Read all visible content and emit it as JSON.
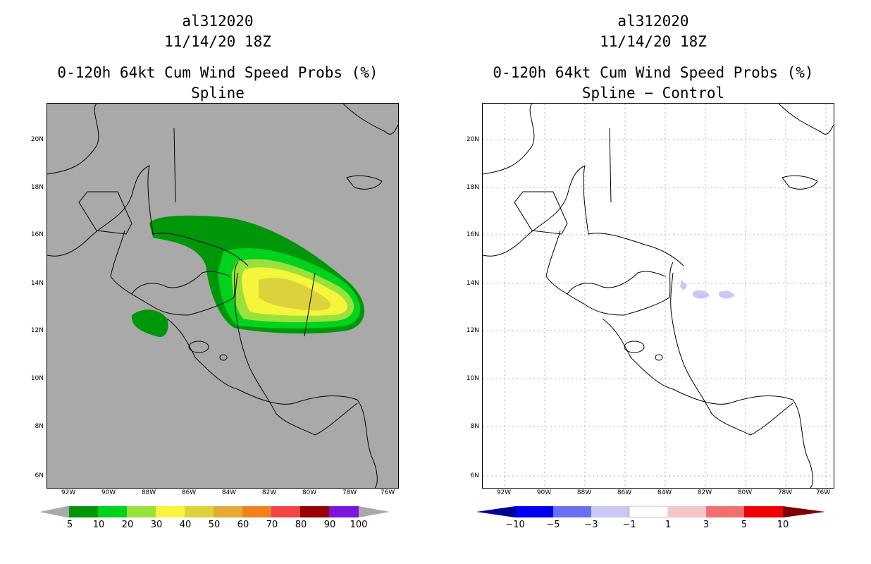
{
  "left": {
    "storm_id": "al312020",
    "datetime": "11/14/20 18Z",
    "product": "0-120h 64kt Cum Wind Speed Probs (%)",
    "subtitle": "Spline",
    "background": "#a9a9a9",
    "colorbar": {
      "labels": [
        "5",
        "10",
        "20",
        "30",
        "40",
        "50",
        "60",
        "70",
        "80",
        "90",
        "100"
      ],
      "colors": [
        "#00960a",
        "#00d21e",
        "#9be13c",
        "#f5f53c",
        "#dcd23c",
        "#e6aa37",
        "#f0821e",
        "#f04646",
        "#960000",
        "#7d14dc"
      ]
    }
  },
  "right": {
    "storm_id": "al312020",
    "datetime": "11/14/20 18Z",
    "product": "0-120h 64kt Cum Wind Speed Probs (%)",
    "subtitle": "Spline − Control",
    "background": "#ffffff",
    "colorbar": {
      "labels": [
        "−10",
        "−5",
        "−3",
        "−1",
        "1",
        "3",
        "5",
        "10"
      ],
      "colors": [
        "#000096",
        "#0000f0",
        "#6e6ef0",
        "#c8c8f5",
        "#ffffff",
        "#f5c8c8",
        "#f07070",
        "#f00000",
        "#800000"
      ]
    }
  },
  "axes": {
    "lat_labels": [
      "20N",
      "18N",
      "16N",
      "14N",
      "12N",
      "10N",
      "8N",
      "6N"
    ],
    "lon_labels": [
      "92W",
      "90W",
      "88W",
      "86W",
      "84W",
      "82W",
      "80W",
      "78W",
      "76W"
    ]
  }
}
